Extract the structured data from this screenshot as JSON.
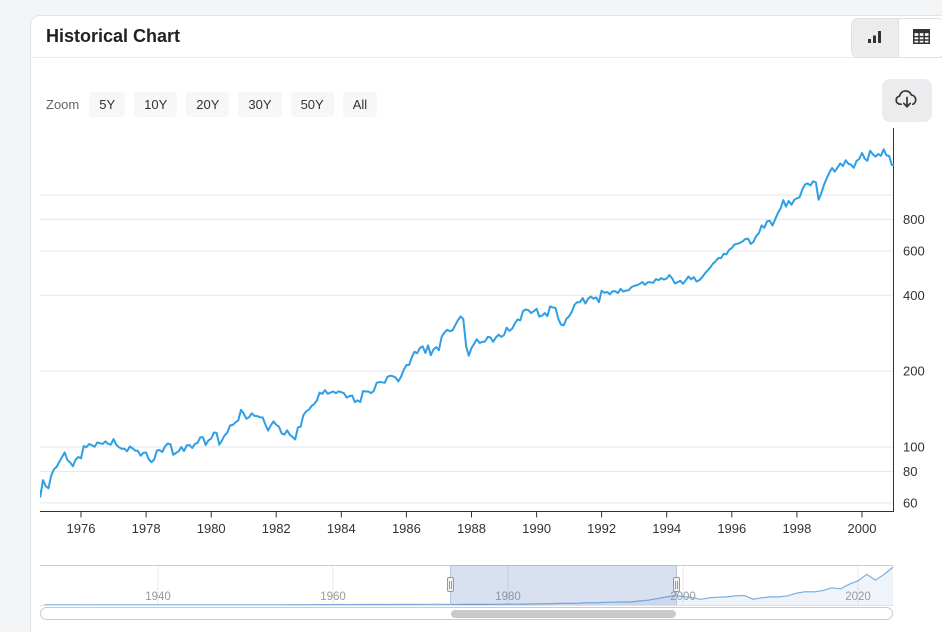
{
  "card": {
    "title": "Historical Chart"
  },
  "view_toggle": {
    "chart_view_icon": "bar-chart-icon",
    "table_view_icon": "table-icon",
    "selected": "chart"
  },
  "zoom_controls": {
    "label": "Zoom",
    "buttons": [
      "5Y",
      "10Y",
      "20Y",
      "30Y",
      "50Y",
      "All"
    ]
  },
  "download": {
    "icon": "cloud-download-icon"
  },
  "chart_data": {
    "type": "line",
    "title": "Historical Chart",
    "legend": "none",
    "grid": "horizontal",
    "y_axis": {
      "position": "right",
      "scale": "log",
      "ticks": [
        60,
        80,
        100,
        200,
        400,
        600,
        800
      ],
      "unlabeled_gridlines": [
        1000
      ],
      "range_approx": [
        56,
        1850
      ]
    },
    "x_axis": {
      "ticks": [
        1976,
        1978,
        1980,
        1982,
        1984,
        1986,
        1988,
        1990,
        1992,
        1994,
        1996,
        1998,
        2000
      ],
      "range_approx": [
        1974.7,
        2001.0
      ]
    },
    "series": [
      {
        "name": "Price",
        "color": "#2f9fe3",
        "interval": "monthly",
        "start_year": 1974,
        "start_month": 8,
        "values": [
          72.15,
          63.54,
          73.9,
          69.97,
          68.56,
          76.98,
          81.59,
          83.36,
          87.3,
          91.15,
          95.19,
          88.75,
          86.88,
          83.87,
          89.04,
          91.24,
          90.19,
          100.86,
          99.71,
          102.77,
          101.64,
          100.18,
          104.28,
          103.44,
          102.91,
          105.24,
          102.9,
          102.1,
          107.46,
          102.03,
          99.82,
          98.42,
          98.44,
          96.12,
          100.48,
          98.85,
          96.77,
          96.53,
          92.34,
          94.83,
          95.1,
          89.25,
          87.04,
          89.21,
          96.83,
          97.24,
          95.53,
          100.68,
          103.29,
          102.54,
          93.15,
          94.7,
          96.11,
          99.93,
          96.28,
          101.59,
          101.76,
          99.08,
          102.91,
          103.81,
          109.32,
          109.32,
          101.82,
          106.16,
          107.94,
          114.16,
          113.66,
          102.09,
          106.29,
          111.24,
          114.24,
          121.67,
          122.38,
          125.46,
          127.47,
          140.52,
          135.76,
          129.55,
          131.27,
          136.0,
          132.81,
          132.59,
          131.21,
          130.92,
          122.79,
          116.18,
          121.89,
          126.35,
          122.55,
          120.4,
          113.11,
          111.96,
          116.44,
          111.88,
          109.61,
          107.09,
          119.51,
          120.42,
          133.71,
          138.54,
          140.64,
          145.3,
          148.06,
          152.96,
          164.42,
          162.39,
          168.11,
          162.56,
          164.4,
          166.07,
          163.55,
          166.4,
          164.93,
          163.41,
          157.06,
          159.18,
          160.05,
          150.55,
          153.18,
          150.66,
          166.68,
          166.1,
          166.09,
          163.58,
          167.24,
          179.63,
          181.18,
          180.66,
          179.83,
          189.55,
          191.85,
          190.92,
          188.63,
          182.08,
          189.82,
          202.17,
          211.28,
          211.78,
          226.92,
          238.9,
          235.52,
          247.35,
          250.84,
          236.12,
          252.93,
          231.32,
          243.98,
          249.22,
          242.17,
          274.08,
          284.2,
          291.7,
          288.36,
          290.1,
          304.0,
          318.66,
          329.8,
          321.83,
          251.79,
          230.3,
          247.08,
          257.07,
          267.82,
          258.89,
          261.33,
          262.16,
          273.5,
          272.02,
          261.52,
          271.91,
          278.97,
          273.7,
          277.72,
          297.47,
          288.86,
          294.87,
          309.64,
          320.52,
          317.98,
          346.08,
          351.45,
          349.15,
          340.36,
          345.99,
          353.4,
          329.08,
          331.89,
          339.94,
          330.8,
          361.23,
          358.02,
          356.15,
          322.56,
          306.05,
          304.0,
          322.22,
          330.22,
          343.93,
          367.07,
          375.22,
          375.35,
          389.83,
          371.16,
          387.81,
          395.43,
          387.86,
          392.46,
          375.22,
          417.09,
          408.79,
          412.7,
          403.69,
          414.95,
          415.35,
          408.14,
          424.21,
          414.03,
          417.8,
          418.68,
          431.35,
          435.71,
          438.78,
          443.38,
          451.67,
          440.19,
          450.19,
          450.53,
          448.13,
          463.56,
          458.93,
          467.83,
          461.79,
          466.45,
          481.61,
          467.14,
          445.77,
          450.91,
          456.5,
          444.27,
          458.26,
          475.49,
          462.69,
          472.35,
          453.69,
          459.27,
          470.42,
          487.39,
          500.71,
          514.71,
          533.4,
          544.75,
          562.06,
          561.88,
          584.41,
          581.5,
          605.37,
          615.93,
          636.02,
          640.43,
          645.5,
          654.17,
          669.12,
          670.63,
          639.95,
          651.99,
          687.31,
          705.27,
          757.02,
          740.74,
          786.16,
          790.82,
          757.12,
          801.34,
          848.28,
          885.14,
          954.29,
          899.47,
          947.28,
          914.62,
          955.4,
          970.43,
          980.28,
          1049.34,
          1101.75,
          1111.75,
          1090.82,
          1133.84,
          1120.67,
          957.28,
          1017.01,
          1098.67,
          1163.63,
          1229.23,
          1279.64,
          1238.33,
          1286.37,
          1335.18,
          1301.84,
          1372.71,
          1328.72,
          1320.41,
          1282.71,
          1362.93,
          1388.91,
          1469.25,
          1394.46,
          1366.42,
          1498.58,
          1452.43,
          1420.6,
          1454.6,
          1430.83,
          1517.68,
          1436.51,
          1429.4,
          1314.95,
          1320.28
        ]
      }
    ],
    "navigator": {
      "ticks": [
        1940,
        1960,
        1980,
        2000,
        2020
      ],
      "range_approx": [
        1926.5,
        2024.0
      ],
      "window": [
        1973.4,
        1999.3
      ],
      "mask_color": "#6685c2",
      "series": {
        "name": "Price (full history)",
        "color": "#78ade0",
        "interval": "yearly",
        "start_year": 1927,
        "values": [
          17.66,
          24.35,
          21.45,
          15.34,
          8.12,
          6.89,
          10.1,
          9.5,
          13.43,
          17.18,
          10.55,
          13.21,
          12.49,
          10.58,
          8.69,
          9.77,
          11.67,
          13.28,
          17.36,
          15.3,
          15.3,
          15.2,
          16.76,
          20.41,
          23.77,
          26.57,
          24.81,
          35.98,
          45.48,
          46.67,
          39.99,
          55.21,
          59.89,
          58.11,
          71.55,
          63.1,
          75.02,
          84.75,
          92.43,
          80.33,
          96.47,
          103.86,
          92.06,
          92.15,
          102.09,
          118.05,
          97.55,
          68.56,
          90.19,
          107.46,
          95.1,
          96.11,
          107.94,
          135.76,
          122.55,
          140.64,
          164.93,
          167.24,
          211.28,
          242.17,
          247.08,
          277.72,
          353.4,
          330.22,
          417.09,
          435.71,
          466.45,
          459.27,
          615.93,
          740.74,
          970.43,
          1229.23,
          1469.25,
          1320.28,
          1148.08,
          879.82,
          1111.92,
          1211.92,
          1248.29,
          1418.3,
          1468.36,
          903.25,
          1115.1,
          1257.64,
          1257.6,
          1426.19,
          1848.36,
          2058.9,
          2043.94,
          2238.83,
          2673.61,
          2506.85,
          3230.78,
          3756.07,
          4766.18,
          3839.5,
          4769.83,
          5881.63
        ]
      }
    }
  }
}
